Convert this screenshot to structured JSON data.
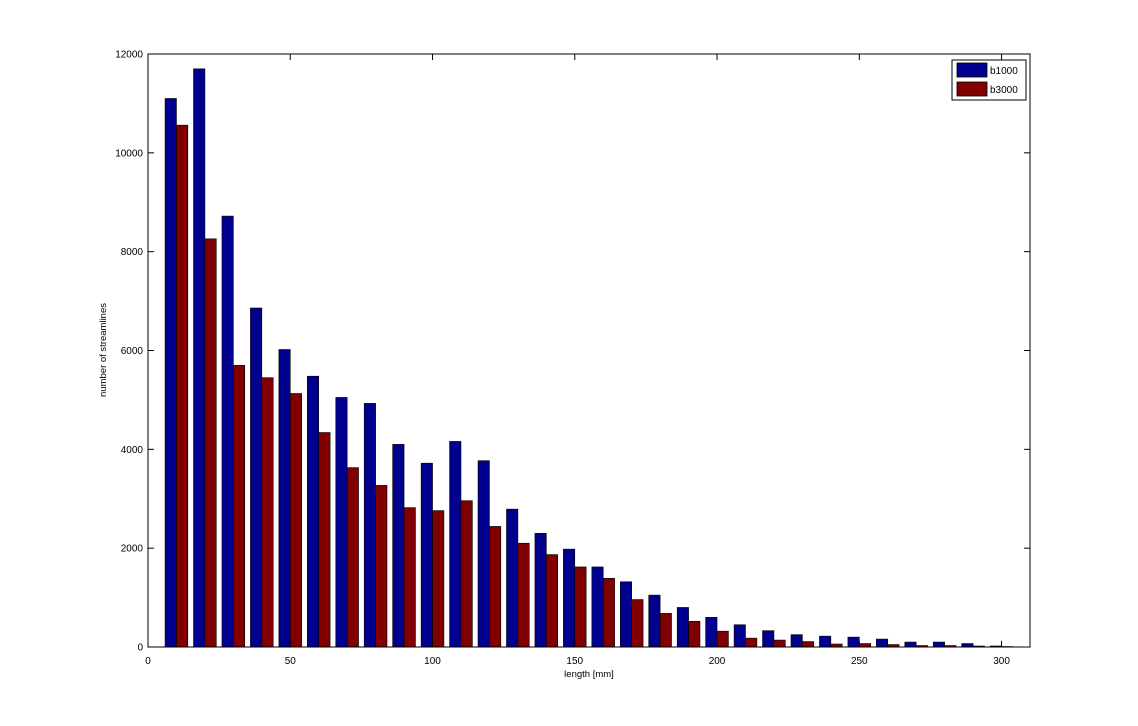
{
  "chart_data": {
    "type": "bar",
    "title": "",
    "xlabel": "length [mm]",
    "ylabel": "number of streamlines",
    "xlim": [
      0,
      310
    ],
    "ylim": [
      0,
      12000
    ],
    "xticks": [
      0,
      50,
      100,
      150,
      200,
      250,
      300
    ],
    "yticks": [
      0,
      2000,
      4000,
      6000,
      8000,
      10000,
      12000
    ],
    "grid": false,
    "legend_position": "top-right",
    "bin_width": 10,
    "x": [
      10,
      20,
      30,
      40,
      50,
      60,
      70,
      80,
      90,
      100,
      110,
      120,
      130,
      140,
      150,
      160,
      170,
      180,
      190,
      200,
      210,
      220,
      230,
      240,
      250,
      260,
      270,
      280,
      290,
      300
    ],
    "series": [
      {
        "name": "b1000",
        "color": "#00008f",
        "values": [
          11100,
          11700,
          8720,
          6860,
          6020,
          5480,
          5050,
          4930,
          4100,
          3720,
          4160,
          3770,
          2790,
          2300,
          1980,
          1620,
          1320,
          1050,
          800,
          600,
          450,
          330,
          250,
          220,
          200,
          160,
          100,
          100,
          70,
          20
        ]
      },
      {
        "name": "b3000",
        "color": "#800000",
        "values": [
          10560,
          8260,
          5700,
          5450,
          5130,
          4340,
          3630,
          3270,
          2820,
          2760,
          2960,
          2440,
          2100,
          1870,
          1620,
          1390,
          960,
          680,
          520,
          320,
          180,
          140,
          110,
          60,
          70,
          50,
          30,
          30,
          20,
          10
        ]
      }
    ]
  }
}
